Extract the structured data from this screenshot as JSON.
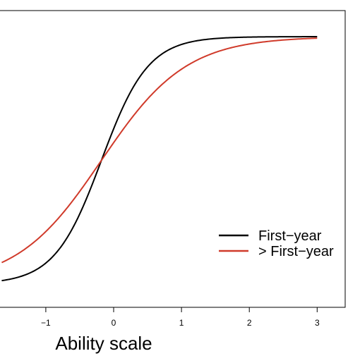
{
  "chart_data": {
    "type": "line",
    "title": "",
    "xlabel": "Ability scale",
    "ylabel": "",
    "xlim": [
      -1.65,
      3.43
    ],
    "ylim": [
      -0.03,
      1.03
    ],
    "x_ticks": [
      -1,
      0,
      1,
      2,
      3
    ],
    "x_tick_labels": [
      "−1",
      "0",
      "1",
      "2",
      "3"
    ],
    "grid": false,
    "legend_position": "right",
    "series": [
      {
        "name": "First−year",
        "color": "#000000",
        "curve": "logistic",
        "discrimination": 2.9,
        "difficulty": -0.18,
        "x_range": [
          -1.65,
          3.0
        ]
      },
      {
        "name": "> First−year",
        "color": "#d03a2a",
        "curve": "logistic",
        "discrimination": 1.6,
        "difficulty": -0.18,
        "x_range": [
          -1.65,
          3.0
        ]
      }
    ]
  }
}
